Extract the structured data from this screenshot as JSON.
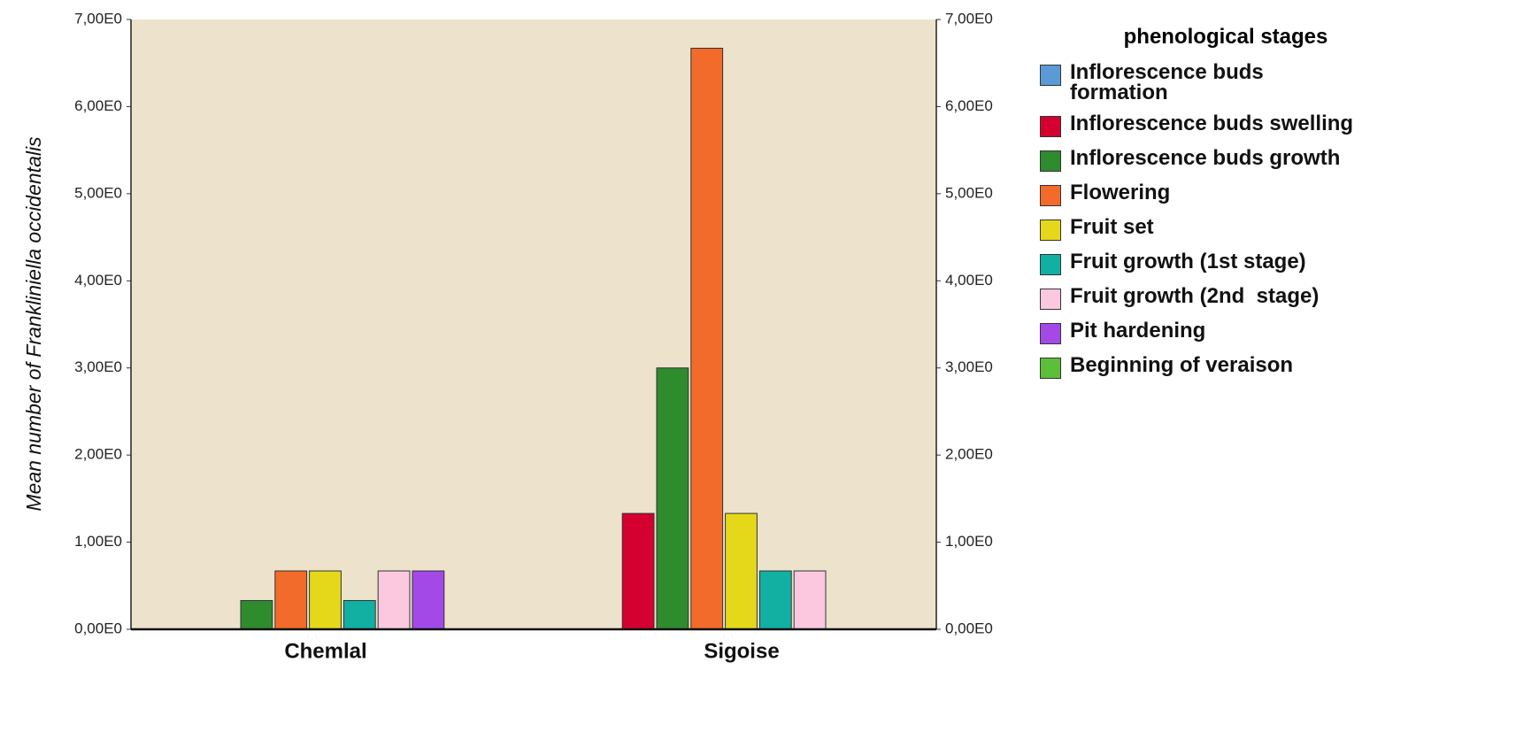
{
  "chart_data": {
    "type": "bar",
    "y_label": "Mean number of Frankliniella occidentalis",
    "legend_title": "phenological stages",
    "categories": [
      "Chemlal",
      "Sigoise"
    ],
    "series": [
      {
        "name": "Inflorescence buds formation",
        "color": "#5b9bd5",
        "values": [
          0,
          0
        ]
      },
      {
        "name": "Inflorescence buds swelling",
        "color": "#d4002f",
        "values": [
          0,
          1.33
        ]
      },
      {
        "name": "Inflorescence buds growth",
        "color": "#2e8b2e",
        "values": [
          0.33,
          3.0
        ]
      },
      {
        "name": "Flowering",
        "color": "#f26b2a",
        "values": [
          0.67,
          6.67
        ]
      },
      {
        "name": "Fruit set",
        "color": "#e5d81a",
        "values": [
          0.67,
          1.33
        ]
      },
      {
        "name": "Fruit growth (1st stage)",
        "color": "#11b0a3",
        "values": [
          0.33,
          0.67
        ]
      },
      {
        "name": "Fruit growth (2nd  stage)",
        "color": "#fbc8e0",
        "values": [
          0.67,
          0.67
        ]
      },
      {
        "name": "Pit hardening",
        "color": "#a349e8",
        "values": [
          0.67,
          0
        ]
      },
      {
        "name": "Beginning of veraison",
        "color": "#5cbf3a",
        "values": [
          0,
          0
        ]
      }
    ],
    "ylim": [
      0,
      7
    ],
    "yticks": [
      {
        "value": 0,
        "label": "0,00E0"
      },
      {
        "value": 1,
        "label": "1,00E0"
      },
      {
        "value": 2,
        "label": "2,00E0"
      },
      {
        "value": 3,
        "label": "3,00E0"
      },
      {
        "value": 4,
        "label": "4,00E0"
      },
      {
        "value": 5,
        "label": "5,00E0"
      },
      {
        "value": 6,
        "label": "6,00E0"
      },
      {
        "value": 7,
        "label": "7,00E0"
      }
    ],
    "plot_background": "#ede3cd",
    "legend": "right"
  }
}
